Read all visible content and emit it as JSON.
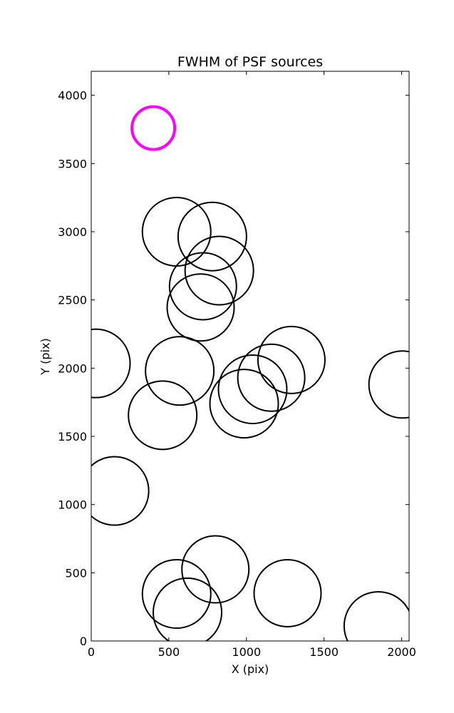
{
  "chart_data": {
    "type": "scatter",
    "title": "FWHM of PSF sources",
    "xlabel": "X (pix)",
    "ylabel": "Y (pix)",
    "xlim": [
      0,
      2048
    ],
    "ylim": [
      0,
      4176
    ],
    "x_ticks": [
      0,
      500,
      1000,
      1500,
      2000
    ],
    "x_tick_labels": [
      "0",
      "500",
      "1000",
      "1500",
      "2000"
    ],
    "y_ticks": [
      0,
      500,
      1000,
      1500,
      2000,
      2500,
      3000,
      3500,
      4000
    ],
    "y_tick_labels": [
      "0",
      "500",
      "1000",
      "1500",
      "2000",
      "2500",
      "3000",
      "3500",
      "4000"
    ],
    "grid": false,
    "legend": "none",
    "series": [
      {
        "color": "#000000",
        "x": [
          550,
          780,
          825,
          720,
          705,
          30,
          570,
          460,
          150,
          1290,
          1160,
          1040,
          985,
          2005,
          550,
          800,
          620,
          1265,
          1850
        ],
        "y": [
          3000,
          2965,
          2715,
          2600,
          2445,
          2035,
          1980,
          1655,
          1100,
          2060,
          1930,
          1845,
          1740,
          1880,
          345,
          525,
          210,
          350,
          110
        ],
        "fwhm": [
          4.8,
          4.8,
          4.8,
          4.7,
          4.7,
          4.8,
          4.8,
          4.8,
          4.8,
          4.7,
          4.7,
          4.8,
          4.8,
          4.7,
          4.8,
          4.7,
          4.8,
          4.7,
          4.8
        ]
      },
      {
        "color": "#ff00ff",
        "x": [
          400
        ],
        "y": [
          3760
        ],
        "fwhm": [
          3.0
        ]
      }
    ]
  }
}
